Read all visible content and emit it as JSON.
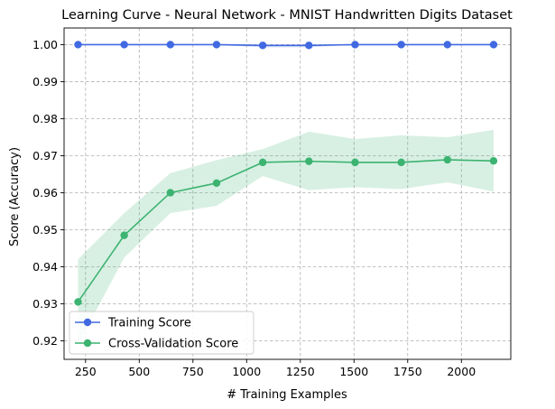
{
  "chart_data": {
    "type": "line",
    "title": "Learning Curve - Neural Network - MNIST Handwritten Digits Dataset",
    "xlabel": "# Training Examples",
    "ylabel": "Score (Accuracy)",
    "xlim": [
      150,
      2230
    ],
    "ylim": [
      0.915,
      1.0045
    ],
    "xticks": [
      250,
      500,
      750,
      1000,
      1250,
      1500,
      1750,
      2000
    ],
    "yticks": [
      0.92,
      0.93,
      0.94,
      0.95,
      0.96,
      0.97,
      0.98,
      0.99,
      1.0
    ],
    "xtick_labels": [
      "250",
      "500",
      "750",
      "1000",
      "1250",
      "1500",
      "1750",
      "2000"
    ],
    "ytick_labels": [
      "0.92",
      "0.93",
      "0.94",
      "0.95",
      "0.96",
      "0.97",
      "0.98",
      "0.99",
      "1.00"
    ],
    "grid": true,
    "legend_position": "lower-left",
    "x": [
      215,
      430,
      645,
      860,
      1075,
      1290,
      1505,
      1720,
      1935,
      2150
    ],
    "series": [
      {
        "name": "Training Score",
        "color": "#4169e1",
        "values": [
          1.0,
          1.0,
          1.0,
          1.0,
          0.9998,
          0.9998,
          1.0,
          1.0,
          1.0,
          1.0
        ],
        "band_lower": [
          1.0,
          1.0,
          1.0,
          0.9999,
          0.9993,
          0.9993,
          1.0,
          1.0,
          1.0,
          1.0
        ],
        "band_upper": [
          1.0,
          1.0,
          1.0,
          1.0,
          1.0,
          1.0,
          1.0,
          1.0,
          1.0,
          1.0
        ]
      },
      {
        "name": "Cross-Validation Score",
        "color": "#3cb371",
        "values": [
          0.9305,
          0.9485,
          0.96,
          0.9626,
          0.9682,
          0.9685,
          0.9682,
          0.9682,
          0.9689,
          0.9686
        ],
        "band_lower": [
          0.919,
          0.9425,
          0.9545,
          0.9565,
          0.9645,
          0.9607,
          0.9615,
          0.961,
          0.9628,
          0.9603
        ],
        "band_upper": [
          0.942,
          0.9545,
          0.9653,
          0.9688,
          0.9718,
          0.9765,
          0.9745,
          0.9755,
          0.975,
          0.977
        ]
      }
    ]
  }
}
